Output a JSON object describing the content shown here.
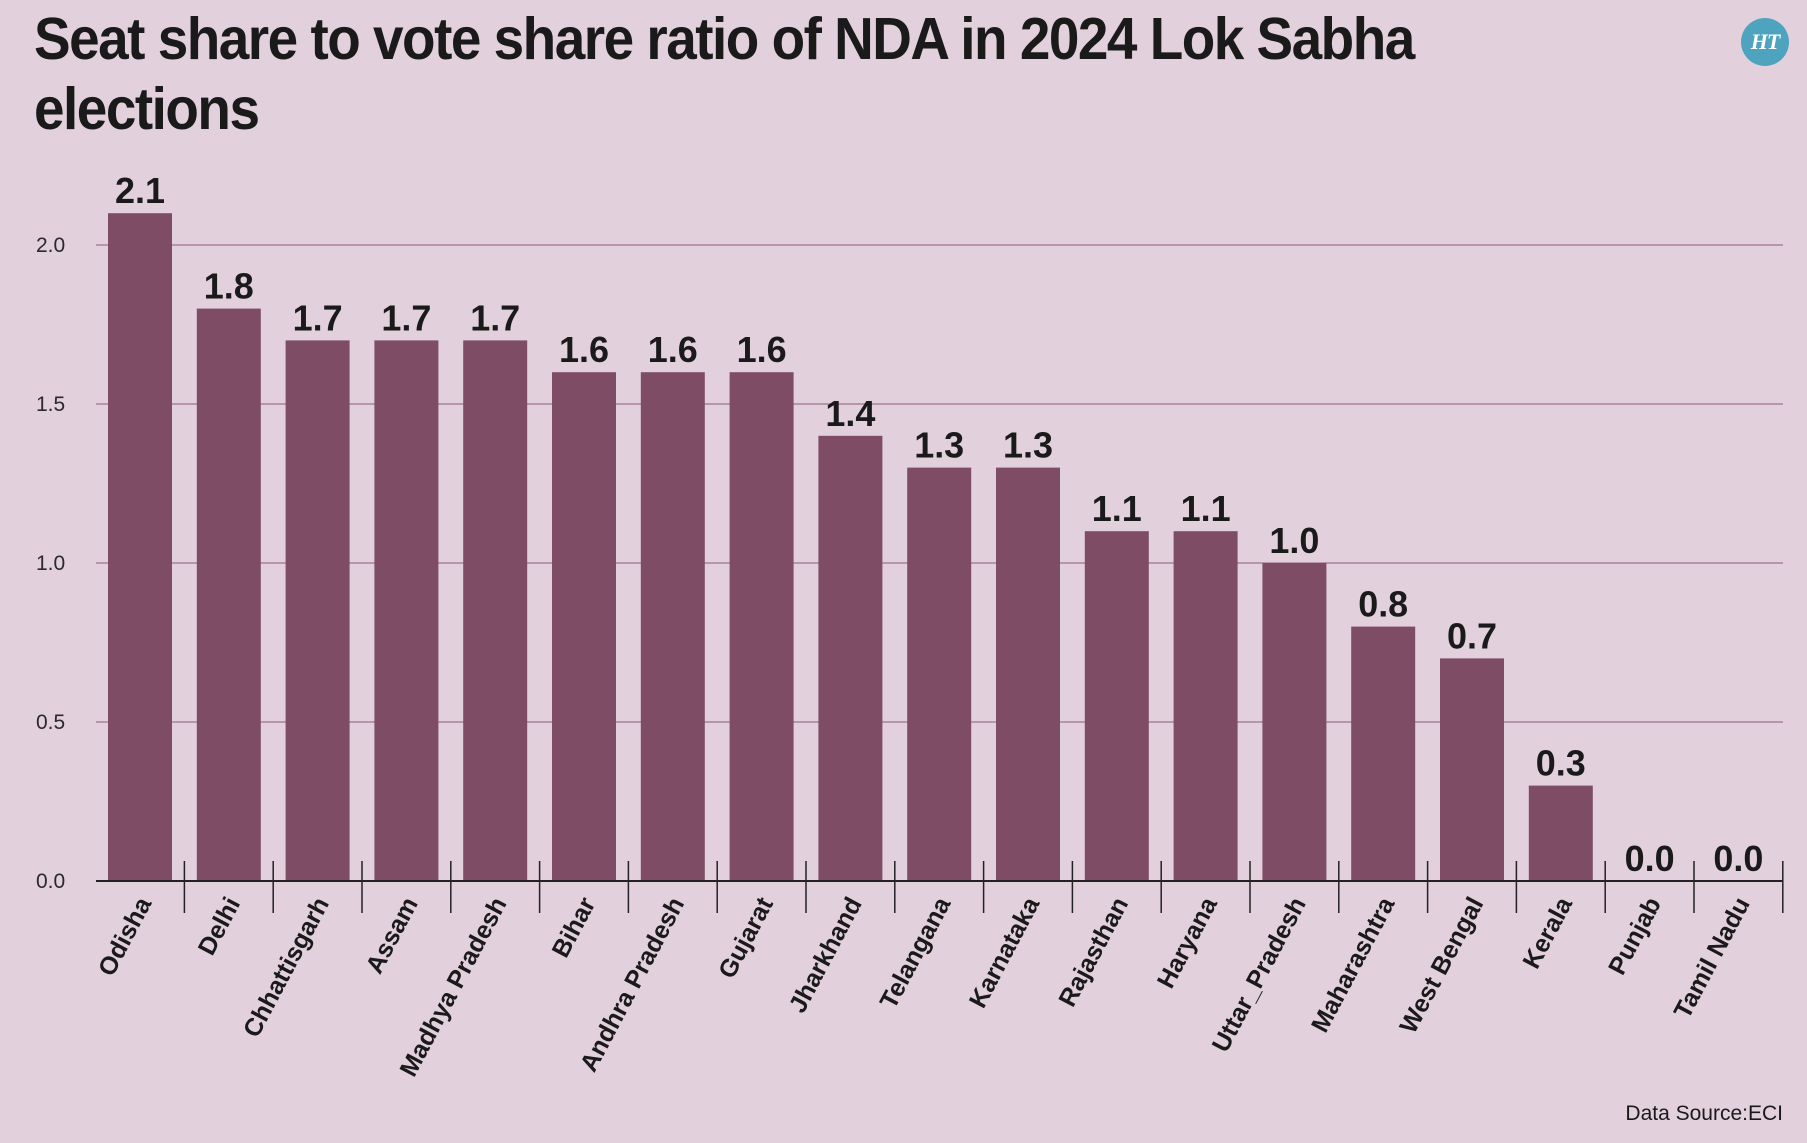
{
  "title": "Seat share to vote share ratio of NDA in 2024 Lok Sabha elections",
  "logo_text": "HT",
  "source": "Data Source:ECI",
  "colors": {
    "background": "#e2d0dc",
    "bar": "#7e4c64",
    "grid": "#a98398",
    "axis": "#222222",
    "logo": "#4ea3bf"
  },
  "chart_data": {
    "type": "bar",
    "categories": [
      "Odisha",
      "Delhi",
      "Chhattisgarh",
      "Assam",
      "Madhya Pradesh",
      "Bihar",
      "Andhra Pradesh",
      "Gujarat",
      "Jharkhand",
      "Telangana",
      "Karnataka",
      "Rajasthan",
      "Haryana",
      "Uttar_Pradesh",
      "Maharashtra",
      "West Bengal",
      "Kerala",
      "Punjab",
      "Tamil Nadu"
    ],
    "values": [
      2.1,
      1.8,
      1.7,
      1.7,
      1.7,
      1.6,
      1.6,
      1.6,
      1.4,
      1.3,
      1.3,
      1.1,
      1.1,
      1.0,
      0.8,
      0.7,
      0.3,
      0.0,
      0.0
    ],
    "value_labels": [
      "2.1",
      "1.8",
      "1.7",
      "1.7",
      "1.7",
      "1.6",
      "1.6",
      "1.6",
      "1.4",
      "1.3",
      "1.3",
      "1.1",
      "1.1",
      "1.0",
      "0.8",
      "0.7",
      "0.3",
      "0.0",
      "0.0"
    ],
    "yticks": [
      "0.0",
      "0.5",
      "1.0",
      "1.5",
      "2.0"
    ],
    "ylim": [
      0,
      2.1
    ],
    "grid": true,
    "title": "Seat share to vote share ratio of NDA in 2024 Lok Sabha elections",
    "xlabel": "",
    "ylabel": ""
  }
}
